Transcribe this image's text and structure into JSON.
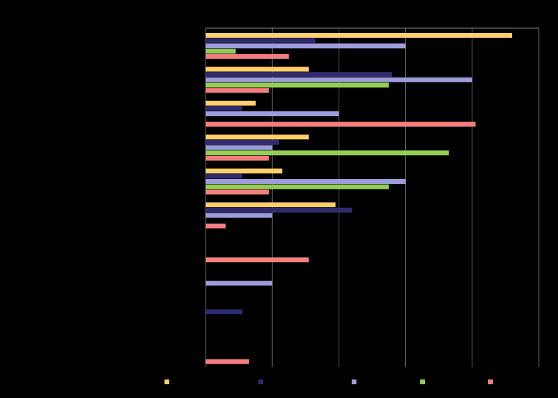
{
  "chart_data": {
    "type": "hbar",
    "categories": [
      null,
      null,
      null,
      null,
      null,
      null,
      null,
      null,
      null,
      null
    ],
    "series": [
      {
        "color": "#fdd06c",
        "values": [
          4.6,
          1.55,
          0.75,
          1.55,
          1.15,
          1.95,
          null,
          null,
          null,
          null
        ]
      },
      {
        "color": "#2f2b6e",
        "values": [
          1.65,
          2.8,
          0.55,
          1.1,
          0.55,
          2.2,
          null,
          null,
          0.55,
          null
        ]
      },
      {
        "color": "#9d9ddc",
        "values": [
          3.0,
          4.0,
          2.0,
          1.0,
          3.0,
          1.0,
          null,
          1.0,
          null,
          null
        ]
      },
      {
        "color": "#92cf54",
        "values": [
          0.45,
          2.75,
          null,
          3.65,
          2.75,
          null,
          null,
          null,
          null,
          null
        ]
      },
      {
        "color": "#f47e7e",
        "values": [
          1.25,
          0.95,
          4.05,
          0.95,
          0.95,
          0.3,
          1.55,
          null,
          null,
          0.65
        ]
      }
    ],
    "xlim": [
      0,
      5
    ],
    "xticks": [
      0,
      1,
      2,
      3,
      4,
      5
    ],
    "grid": true
  }
}
